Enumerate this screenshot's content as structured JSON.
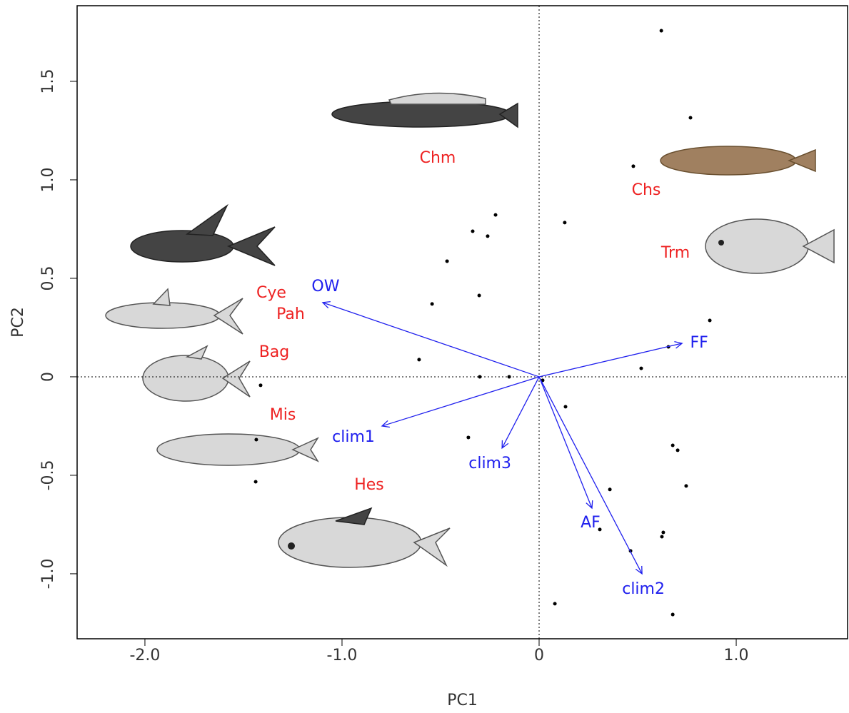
{
  "chart_data": {
    "type": "biplot",
    "xlabel": "PC1",
    "ylabel": "PC2",
    "xlim": [
      -2.344,
      1.565
    ],
    "ylim": [
      -1.33,
      1.884
    ],
    "xticks": [
      {
        "value": -2,
        "label": "-2.0"
      },
      {
        "value": -1,
        "label": "-1.0"
      },
      0,
      {
        "value": 1,
        "label": "1.0"
      }
    ],
    "yticks": [
      {
        "value": -1,
        "label": "-1.0"
      },
      -0.5,
      0,
      0.5,
      {
        "value": 1,
        "label": "1.0"
      },
      1.5
    ],
    "point_color": "#000000",
    "x": [
      0.62,
      0.768,
      0.478,
      -0.221,
      0.13,
      -0.337,
      -0.261,
      -0.467,
      -0.304,
      -0.543,
      0.866,
      0.656,
      -0.609,
      0.518,
      -0.301,
      -0.152,
      0.018,
      -1.413,
      0.134,
      -1.435,
      -0.359,
      0.678,
      0.703,
      -1.438,
      0.746,
      0.359,
      0.308,
      0.63,
      0.623,
      0.464,
      0.08,
      0.678
    ],
    "y": [
      1.757,
      1.315,
      1.069,
      0.822,
      0.783,
      0.739,
      0.714,
      0.587,
      0.413,
      0.37,
      0.286,
      0.152,
      0.087,
      0.043,
      0,
      0,
      -0.018,
      -0.043,
      -0.152,
      -0.319,
      -0.308,
      -0.348,
      -0.373,
      -0.533,
      -0.554,
      -0.572,
      -0.775,
      -0.79,
      -0.812,
      -0.884,
      -1.152,
      -1.207
    ],
    "loadings": {
      "color": "#2020ee",
      "names": [
        "OW",
        "FF",
        "clim1",
        "clim3",
        "AF",
        "clim2"
      ],
      "x": [
        -1.098,
        0.725,
        -0.797,
        -0.188,
        0.268,
        0.522
      ],
      "y": [
        0.377,
        0.17,
        -0.25,
        -0.362,
        -0.667,
        -1.0
      ]
    },
    "species_color": "#ee2222",
    "species_labels": [
      "Chm",
      "Chs",
      "Trm",
      "Cye",
      "Pah",
      "Bag",
      "Mis",
      "Hes"
    ]
  }
}
